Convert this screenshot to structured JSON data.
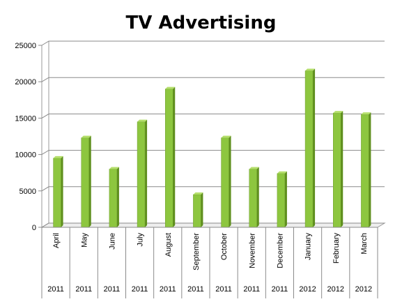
{
  "chart_data": {
    "type": "bar",
    "title": "TV Advertising",
    "categories": [
      "April",
      "May",
      "June",
      "July",
      "August",
      "September",
      "October",
      "November",
      "December",
      "January",
      "February",
      "March"
    ],
    "groups": [
      "2011",
      "2011",
      "2011",
      "2011",
      "2011",
      "2011",
      "2011",
      "2011",
      "2011",
      "2012",
      "2012",
      "2012"
    ],
    "values": [
      9500,
      12300,
      8000,
      14500,
      19000,
      4500,
      12300,
      8000,
      7400,
      21500,
      15700,
      15500
    ],
    "ylim": [
      0,
      25000
    ],
    "yticks": [
      0,
      5000,
      10000,
      15000,
      20000,
      25000
    ],
    "grid": true,
    "bar_color": "#8dc63f",
    "bar_side_color": "#5f8f1e",
    "bar_top_color": "#b5df6c"
  }
}
